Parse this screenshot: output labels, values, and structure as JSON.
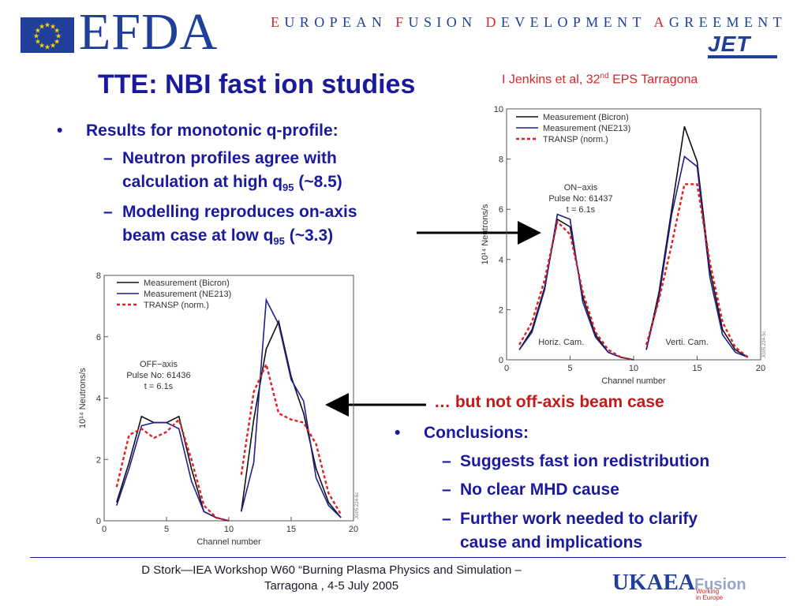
{
  "header": {
    "efda_logo": "EFDA",
    "efda_full": [
      {
        "initial": "E",
        "rest": "UROPEAN"
      },
      {
        "initial": "F",
        "rest": "USION"
      },
      {
        "initial": "D",
        "rest": "EVELOPMENT"
      },
      {
        "initial": "A",
        "rest": "GREEMENT"
      }
    ],
    "jet_logo": "JET"
  },
  "title": "TTE: NBI fast ion studies",
  "citation": {
    "text": "I Jenkins et al, 32",
    "sup": "nd",
    "rest": " EPS Tarragona"
  },
  "bullets": {
    "b1": "Results for monotonic q-profile:",
    "s1_line1": "Neutron profiles agree with",
    "s1_line2": "calculation at high q",
    "s1_sub": "95",
    "s1_tail": " (~8.5)",
    "s2_line1": "Modelling reproduces on-axis",
    "s2_line2": "beam case at low q",
    "s2_sub": "95",
    "s2_tail": " (~3.3)",
    "dash": "–",
    "dot": "•"
  },
  "callout": "… but not off-axis beam case",
  "conclusions": {
    "head": "Conclusions:",
    "items": [
      "Suggests fast ion redistribution",
      "No clear MHD cause",
      "Further work needed to clarify",
      "cause and implications"
    ]
  },
  "footer": {
    "line1": "D Stork—IEA Workshop W60 “Burning Plasma Physics and Simulation –",
    "line2": "Tarragona , 4-5 July 2005",
    "ukaea": "UKAEA",
    "fusion": "Fusion",
    "fusion_sub1": "Working",
    "fusion_sub2": "in Europe"
  },
  "colors": {
    "title": "#1a1a9e",
    "red": "#d4262b",
    "bicron": "#111111",
    "ne213": "#1f1f8f",
    "transp": "#e02020"
  },
  "chart_data": [
    {
      "type": "line",
      "xlabel": "Channel number",
      "ylabel": "10¹⁴ Neutrons/s",
      "xlim": [
        0,
        20
      ],
      "ylim": [
        0,
        10
      ],
      "xticks": [
        0,
        5,
        10,
        15,
        20
      ],
      "yticks": [
        0,
        2,
        4,
        6,
        8,
        10
      ],
      "legend": [
        "Measurement (Bicron)",
        "Measurement (NE213)",
        "TRANSP (norm.)"
      ],
      "legend_position": "top-right",
      "annotation": [
        "ON−axis",
        "Pulse No: 61437",
        "t = 6.1s"
      ],
      "labels": [
        "Horiz. Cam.",
        "Verti. Cam."
      ],
      "stamp": "JG05.224-5c",
      "series": [
        {
          "name": "Measurement (Bicron)",
          "segments": [
            {
              "x": [
                1,
                2,
                3,
                4,
                5,
                6,
                7,
                8,
                9,
                10
              ],
              "y": [
                0.4,
                1.2,
                2.9,
                5.6,
                5.3,
                2.5,
                1.0,
                0.3,
                0.1,
                0.0
              ]
            },
            {
              "x": [
                11,
                12,
                13,
                14,
                15,
                16,
                17,
                18,
                19
              ],
              "y": [
                0.4,
                2.7,
                6.0,
                9.3,
                7.9,
                3.6,
                1.2,
                0.4,
                0.1
              ]
            }
          ]
        },
        {
          "name": "Measurement (NE213)",
          "segments": [
            {
              "x": [
                1,
                2,
                3,
                4,
                5,
                6,
                7,
                8,
                9,
                10
              ],
              "y": [
                0.4,
                1.1,
                2.8,
                5.8,
                5.6,
                2.3,
                0.9,
                0.3,
                0.1,
                0.0
              ]
            },
            {
              "x": [
                11,
                12,
                13,
                14,
                15,
                16,
                17,
                18,
                19
              ],
              "y": [
                0.4,
                2.5,
                5.8,
                8.1,
                7.7,
                3.3,
                1.0,
                0.3,
                0.1
              ]
            }
          ]
        },
        {
          "name": "TRANSP (norm.)",
          "segments": [
            {
              "x": [
                1,
                2,
                3,
                4,
                5,
                6,
                7,
                8,
                9,
                10
              ],
              "y": [
                0.6,
                1.5,
                3.2,
                5.5,
                5.0,
                2.7,
                1.1,
                0.4,
                0.1,
                0.0
              ]
            },
            {
              "x": [
                11,
                12,
                13,
                14,
                15,
                16,
                17,
                18,
                19
              ],
              "y": [
                0.6,
                2.4,
                4.6,
                7.0,
                7.0,
                3.9,
                1.5,
                0.5,
                0.1
              ]
            }
          ]
        }
      ]
    },
    {
      "type": "line",
      "xlabel": "Channel number",
      "ylabel": "10¹⁴ Neutrons/s",
      "xlim": [
        0,
        20
      ],
      "ylim": [
        0,
        8
      ],
      "xticks": [
        0,
        5,
        10,
        15,
        20
      ],
      "yticks": [
        0,
        2,
        4,
        6,
        8
      ],
      "legend": [
        "Measurement (Bicron)",
        "Measurement (NE213)",
        "TRANSP (norm.)"
      ],
      "legend_position": "top-left",
      "annotation": [
        "OFF−axis",
        "Pulse No: 61436",
        "t = 6.1s"
      ],
      "stamp": "JG05.224-6c",
      "series": [
        {
          "name": "Measurement (Bicron)",
          "segments": [
            {
              "x": [
                1,
                2,
                3,
                4,
                5,
                6,
                7,
                8,
                9,
                10
              ],
              "y": [
                0.6,
                1.9,
                3.4,
                3.2,
                3.2,
                3.4,
                1.7,
                0.3,
                0.1,
                0.0
              ]
            },
            {
              "x": [
                11,
                12,
                13,
                14,
                15,
                16,
                17,
                18,
                19
              ],
              "y": [
                0.3,
                3.3,
                5.6,
                6.5,
                4.7,
                3.5,
                1.7,
                0.6,
                0.1
              ]
            }
          ]
        },
        {
          "name": "Measurement (NE213)",
          "segments": [
            {
              "x": [
                1,
                2,
                3,
                4,
                5,
                6,
                7,
                8,
                9,
                10
              ],
              "y": [
                0.5,
                1.7,
                3.1,
                3.2,
                3.2,
                3.0,
                1.3,
                0.3,
                0.1,
                0.0
              ]
            },
            {
              "x": [
                11,
                12,
                13,
                14,
                15,
                16,
                17,
                18,
                19
              ],
              "y": [
                0.3,
                1.9,
                7.2,
                6.4,
                4.6,
                3.9,
                1.4,
                0.5,
                0.1
              ]
            }
          ]
        },
        {
          "name": "TRANSP (norm.)",
          "segments": [
            {
              "x": [
                1,
                2,
                3,
                4,
                5,
                6,
                7,
                8,
                9,
                10
              ],
              "y": [
                1.1,
                2.8,
                3.0,
                2.7,
                2.9,
                3.3,
                2.0,
                0.5,
                0.1,
                0.0
              ]
            },
            {
              "x": [
                11,
                12,
                13,
                14,
                15,
                16,
                17,
                18,
                19
              ],
              "y": [
                1.5,
                4.2,
                5.1,
                3.5,
                3.3,
                3.2,
                2.5,
                0.9,
                0.2
              ]
            }
          ]
        }
      ]
    }
  ]
}
